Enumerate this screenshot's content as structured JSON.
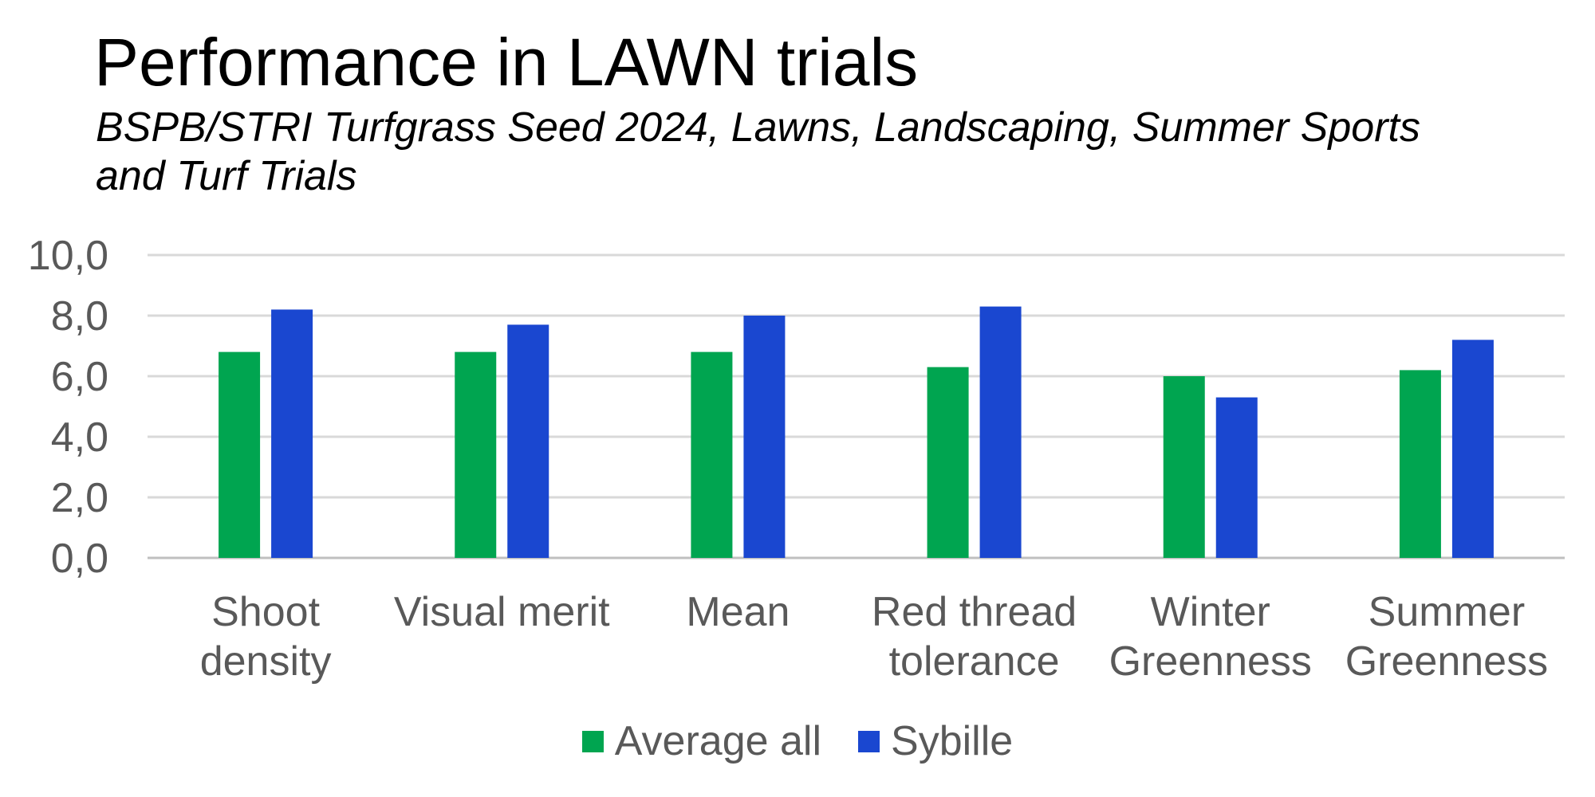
{
  "chart_data": {
    "type": "bar",
    "title": "Performance in LAWN trials",
    "subtitle": "BSPB/STRI Turfgrass Seed 2024, Lawns, Landscaping, Summer Sports and Turf Trials",
    "categories": [
      [
        "Shoot",
        "density"
      ],
      [
        "Visual merit"
      ],
      [
        "Mean"
      ],
      [
        "Red thread",
        "tolerance"
      ],
      [
        "Winter",
        "Greenness"
      ],
      [
        "Summer",
        "Greenness"
      ]
    ],
    "series": [
      {
        "name": "Average all",
        "color": "#00A550",
        "values": [
          6.8,
          6.8,
          6.8,
          6.3,
          6.0,
          6.2
        ]
      },
      {
        "name": "Sybille",
        "color": "#1A47D0",
        "values": [
          8.2,
          7.7,
          8.0,
          8.3,
          5.3,
          7.2
        ]
      }
    ],
    "yticks": [
      "0,0",
      "2,0",
      "4,0",
      "6,0",
      "8,0",
      "10,0"
    ],
    "ylim": [
      0,
      10
    ],
    "grid": true,
    "legend_position": "bottom"
  }
}
